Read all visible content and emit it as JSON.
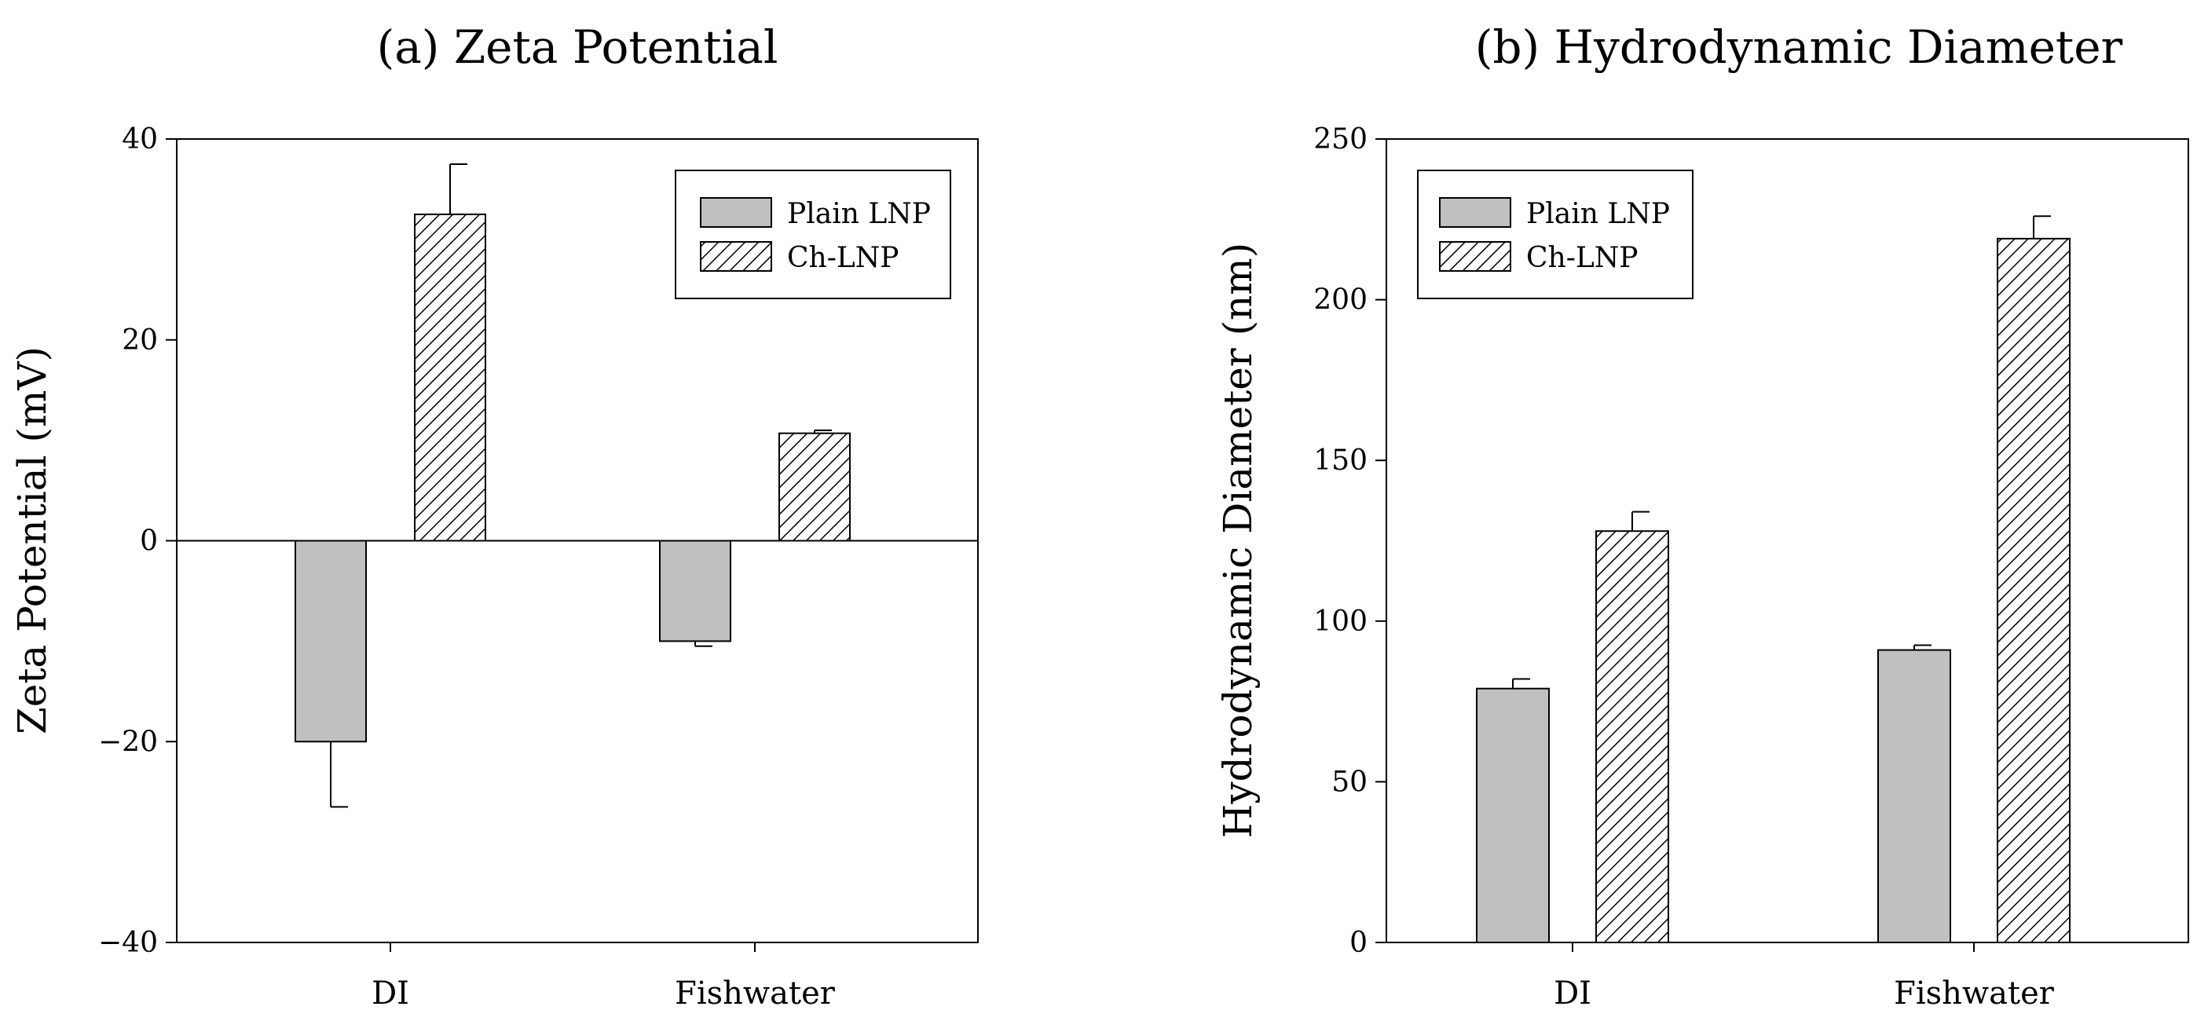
{
  "legend": [
    "Plain LNP",
    "Ch-LNP"
  ],
  "colors": {
    "plain_fill": "#c0c0c0",
    "axis": "#000000",
    "hatch": "#000000"
  },
  "chart_data": [
    {
      "type": "bar",
      "title": "(a) Zeta Potential",
      "ylabel": "Zeta Potential (mV)",
      "xlabel": "",
      "categories": [
        "DI",
        "Fishwater"
      ],
      "ylim": [
        -40,
        40
      ],
      "yticks": [
        -40,
        -20,
        0,
        20,
        40
      ],
      "ytick_labels": [
        "−40",
        "−20",
        "0",
        "20",
        "40"
      ],
      "legend_position": "top-right",
      "series": [
        {
          "name": "Plain LNP",
          "values": [
            -20,
            -10
          ],
          "errors": [
            6.5,
            0.5
          ]
        },
        {
          "name": "Ch-LNP",
          "values": [
            32.5,
            10.7
          ],
          "errors": [
            5,
            0.3
          ]
        }
      ]
    },
    {
      "type": "bar",
      "title": "(b) Hydrodynamic Diameter",
      "ylabel": "Hydrodynamic Diameter (nm)",
      "xlabel": "",
      "categories": [
        "DI",
        "Fishwater"
      ],
      "ylim": [
        0,
        250
      ],
      "yticks": [
        0,
        50,
        100,
        150,
        200,
        250
      ],
      "ytick_labels": [
        "0",
        "50",
        "100",
        "150",
        "200",
        "250"
      ],
      "legend_position": "top-left",
      "series": [
        {
          "name": "Plain LNP",
          "values": [
            79,
            91
          ],
          "errors": [
            3,
            1.5
          ]
        },
        {
          "name": "Ch-LNP",
          "values": [
            128,
            219
          ],
          "errors": [
            6,
            7
          ]
        }
      ]
    }
  ]
}
